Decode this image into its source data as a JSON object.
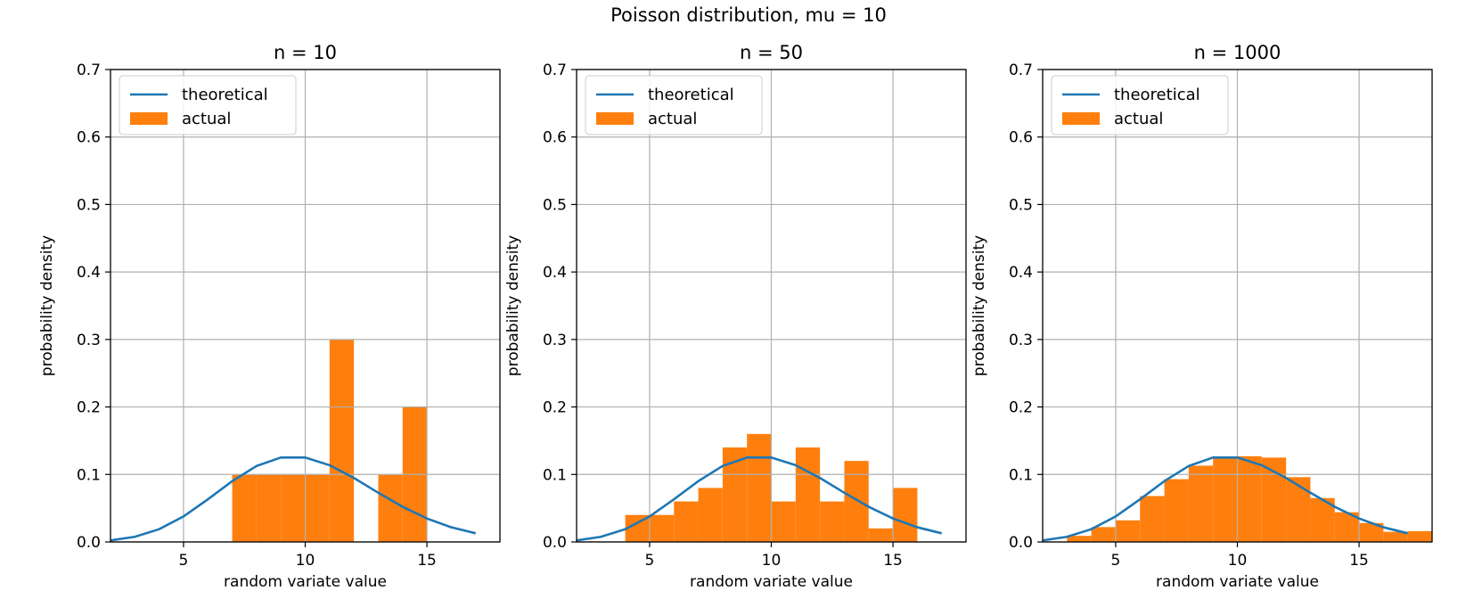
{
  "figure": {
    "suptitle": "Poisson distribution, mu = 10"
  },
  "chart_data": [
    {
      "type": "bar",
      "title": "n = 10",
      "xlabel": "random variate value",
      "ylabel": "probability density",
      "xlim": [
        2,
        18
      ],
      "ylim": [
        0,
        0.7
      ],
      "xticks": [
        5,
        10,
        15
      ],
      "yticks": [
        0.0,
        0.1,
        0.2,
        0.3,
        0.4,
        0.5,
        0.6,
        0.7
      ],
      "grid": true,
      "legend_position": "upper-left",
      "colors": {
        "theoretical": "#1f77b4",
        "actual": "#ff7f0e"
      },
      "series": [
        {
          "name": "theoretical",
          "kind": "line",
          "x": [
            2,
            3,
            4,
            5,
            6,
            7,
            8,
            9,
            10,
            11,
            12,
            13,
            14,
            15,
            16,
            17
          ],
          "y": [
            0.0023,
            0.0076,
            0.0189,
            0.0378,
            0.0631,
            0.0901,
            0.1126,
            0.1251,
            0.1251,
            0.1137,
            0.0948,
            0.0729,
            0.0521,
            0.0347,
            0.0217,
            0.0128
          ]
        },
        {
          "name": "actual",
          "kind": "histogram",
          "bin_edges": [
            7,
            8,
            9,
            10,
            11,
            12,
            13,
            14,
            15
          ],
          "values": [
            0.1,
            0.1,
            0.1,
            0.1,
            0.3,
            0.0,
            0.1,
            0.2
          ]
        }
      ]
    },
    {
      "type": "bar",
      "title": "n = 50",
      "xlabel": "random variate value",
      "ylabel": "probability density",
      "xlim": [
        2,
        18
      ],
      "ylim": [
        0,
        0.7
      ],
      "xticks": [
        5,
        10,
        15
      ],
      "yticks": [
        0.0,
        0.1,
        0.2,
        0.3,
        0.4,
        0.5,
        0.6,
        0.7
      ],
      "grid": true,
      "legend_position": "upper-left",
      "colors": {
        "theoretical": "#1f77b4",
        "actual": "#ff7f0e"
      },
      "series": [
        {
          "name": "theoretical",
          "kind": "line",
          "x": [
            2,
            3,
            4,
            5,
            6,
            7,
            8,
            9,
            10,
            11,
            12,
            13,
            14,
            15,
            16,
            17
          ],
          "y": [
            0.0023,
            0.0076,
            0.0189,
            0.0378,
            0.0631,
            0.0901,
            0.1126,
            0.1251,
            0.1251,
            0.1137,
            0.0948,
            0.0729,
            0.0521,
            0.0347,
            0.0217,
            0.0128
          ]
        },
        {
          "name": "actual",
          "kind": "histogram",
          "bin_edges": [
            4,
            5,
            6,
            7,
            8,
            9,
            10,
            11,
            12,
            13,
            14,
            15,
            16
          ],
          "values": [
            0.04,
            0.04,
            0.06,
            0.08,
            0.14,
            0.16,
            0.06,
            0.14,
            0.06,
            0.12,
            0.02,
            0.08
          ]
        }
      ]
    },
    {
      "type": "bar",
      "title": "n = 1000",
      "xlabel": "random variate value",
      "ylabel": "probability density",
      "xlim": [
        2,
        18
      ],
      "ylim": [
        0,
        0.7
      ],
      "xticks": [
        5,
        10,
        15
      ],
      "yticks": [
        0.0,
        0.1,
        0.2,
        0.3,
        0.4,
        0.5,
        0.6,
        0.7
      ],
      "grid": true,
      "legend_position": "upper-left",
      "colors": {
        "theoretical": "#1f77b4",
        "actual": "#ff7f0e"
      },
      "series": [
        {
          "name": "theoretical",
          "kind": "line",
          "x": [
            2,
            3,
            4,
            5,
            6,
            7,
            8,
            9,
            10,
            11,
            12,
            13,
            14,
            15,
            16,
            17
          ],
          "y": [
            0.0023,
            0.0076,
            0.0189,
            0.0378,
            0.0631,
            0.0901,
            0.1126,
            0.1251,
            0.1251,
            0.1137,
            0.0948,
            0.0729,
            0.0521,
            0.0347,
            0.0217,
            0.0128
          ]
        },
        {
          "name": "actual",
          "kind": "histogram",
          "bin_edges": [
            3,
            4,
            5,
            6,
            7,
            8,
            9,
            10,
            11,
            12,
            13,
            14,
            15,
            16,
            17,
            18
          ],
          "values": [
            0.009,
            0.022,
            0.032,
            0.068,
            0.093,
            0.113,
            0.125,
            0.127,
            0.125,
            0.096,
            0.065,
            0.044,
            0.028,
            0.015,
            0.016
          ]
        }
      ]
    }
  ]
}
